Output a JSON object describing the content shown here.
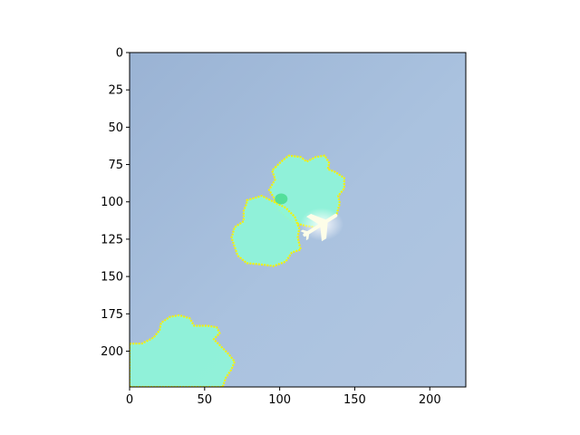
{
  "chart_data": {
    "type": "heatmap",
    "title": "",
    "xlabel": "",
    "ylabel": "",
    "xlim": [
      0,
      224
    ],
    "ylim": [
      224,
      0
    ],
    "grid": false,
    "x_ticks": [
      0,
      50,
      100,
      150,
      200
    ],
    "y_ticks": [
      0,
      25,
      50,
      75,
      100,
      125,
      150,
      175,
      200
    ],
    "image": {
      "content": "aerial sky view with a small white airplane and highlighted segmentation regions",
      "background_colors": [
        "#9bb4d6",
        "#a9c2df",
        "#b0c6e2"
      ],
      "region_fill_color": "#8ef5d8",
      "region_outline_color": "#f2f20a",
      "airplane_color": "#fdfde8",
      "segmented_regions": [
        {
          "name": "upper-region",
          "outline": [
            [
              97,
              77
            ],
            [
              101,
              73
            ],
            [
              106,
              69
            ],
            [
              114,
              70
            ],
            [
              118,
              73
            ],
            [
              124,
              70
            ],
            [
              130,
              69
            ],
            [
              133,
              74
            ],
            [
              132,
              78
            ],
            [
              137,
              80
            ],
            [
              143,
              84
            ],
            [
              143,
              91
            ],
            [
              139,
              96
            ],
            [
              140,
              101
            ],
            [
              138,
              108
            ],
            [
              132,
              112
            ],
            [
              124,
              117
            ],
            [
              117,
              116
            ],
            [
              110,
              114
            ],
            [
              104,
              110
            ],
            [
              99,
              105
            ],
            [
              96,
              97
            ],
            [
              93,
              92
            ],
            [
              97,
              85
            ],
            [
              95,
              79
            ]
          ]
        },
        {
          "name": "middle-region",
          "outline": [
            [
              78,
              99
            ],
            [
              88,
              96
            ],
            [
              96,
              100
            ],
            [
              104,
              104
            ],
            [
              110,
              110
            ],
            [
              113,
              118
            ],
            [
              112,
              124
            ],
            [
              114,
              132
            ],
            [
              108,
              134
            ],
            [
              104,
              140
            ],
            [
              96,
              143
            ],
            [
              88,
              142
            ],
            [
              78,
              141
            ],
            [
              72,
              136
            ],
            [
              70,
              130
            ],
            [
              68,
              124
            ],
            [
              70,
              117
            ],
            [
              76,
              113
            ],
            [
              76,
              106
            ],
            [
              78,
              101
            ]
          ]
        },
        {
          "name": "lower-region",
          "outline": [
            [
              0,
              195
            ],
            [
              8,
              195
            ],
            [
              16,
              191
            ],
            [
              20,
              186
            ],
            [
              21,
              181
            ],
            [
              27,
              177
            ],
            [
              33,
              176
            ],
            [
              40,
              178
            ],
            [
              43,
              183
            ],
            [
              52,
              183
            ],
            [
              58,
              184
            ],
            [
              60,
              188
            ],
            [
              56,
              192
            ],
            [
              62,
              198
            ],
            [
              66,
              202
            ],
            [
              70,
              207
            ],
            [
              68,
              212
            ],
            [
              64,
              218
            ],
            [
              62,
              224
            ],
            [
              0,
              224
            ]
          ]
        }
      ],
      "airplane_center": [
        128,
        115
      ]
    }
  }
}
